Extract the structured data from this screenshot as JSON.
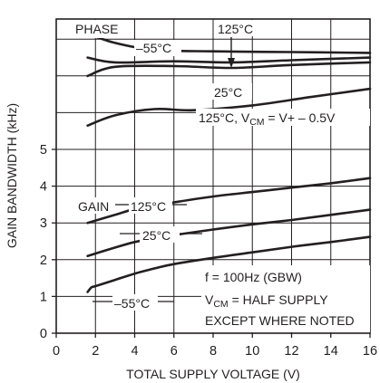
{
  "chart_data": {
    "type": "line",
    "xlabel": "TOTAL SUPPLY VOLTAGE (V)",
    "ylabel": "GAIN BANDWIDTH (kHz)",
    "xlim": [
      0,
      16
    ],
    "ylim": [
      0,
      5
    ],
    "x_ticks": [
      "0",
      "2",
      "4",
      "6",
      "8",
      "10",
      "12",
      "14",
      "16"
    ],
    "y_ticks": [
      "0",
      "1",
      "2",
      "3",
      "4",
      "5"
    ],
    "grid": true,
    "gain_series": [
      {
        "name": "125°C",
        "x": [
          1.6,
          3,
          4,
          5,
          6,
          8,
          10,
          12,
          14,
          16
        ],
        "y": [
          3.0,
          3.22,
          3.38,
          3.48,
          3.56,
          3.72,
          3.84,
          3.96,
          4.08,
          4.22
        ]
      },
      {
        "name": "25°C",
        "x": [
          1.6,
          3,
          4,
          5,
          6,
          8,
          10,
          12,
          14,
          16
        ],
        "y": [
          2.1,
          2.33,
          2.48,
          2.58,
          2.67,
          2.82,
          2.96,
          3.08,
          3.22,
          3.36
        ]
      },
      {
        "name": "–55°C",
        "x": [
          1.6,
          1.8,
          2,
          3,
          4,
          5,
          6,
          8,
          10,
          12,
          14,
          16
        ],
        "y": [
          1.12,
          1.25,
          1.28,
          1.45,
          1.62,
          1.76,
          1.88,
          2.05,
          2.2,
          2.35,
          2.48,
          2.62
        ]
      }
    ],
    "phase_series": [
      {
        "name": "–55°C",
        "curve_pos": [
          [
            1.6,
            0.4
          ],
          [
            3,
            0.65
          ],
          [
            5,
            0.84
          ],
          [
            8,
            0.88
          ],
          [
            12,
            0.9
          ],
          [
            16,
            0.92
          ]
        ]
      },
      {
        "name": "125°C",
        "curve_pos": [
          [
            1.6,
            1.05
          ],
          [
            3,
            1.18
          ],
          [
            6,
            1.15
          ],
          [
            9,
            1.18
          ],
          [
            12,
            1.12
          ],
          [
            16,
            1.05
          ]
        ]
      },
      {
        "name": "25°C",
        "curve_pos": [
          [
            1.6,
            1.55
          ],
          [
            3,
            1.3
          ],
          [
            6,
            1.28
          ],
          [
            9,
            1.33
          ],
          [
            12,
            1.25
          ],
          [
            16,
            1.18
          ]
        ]
      },
      {
        "name": "125°C, VCM = V+ – 0.5V",
        "curve_pos": [
          [
            1.6,
            2.9
          ],
          [
            3,
            2.62
          ],
          [
            5,
            2.45
          ],
          [
            7,
            2.48
          ],
          [
            10,
            2.35
          ],
          [
            13,
            2.12
          ],
          [
            16,
            1.9
          ]
        ]
      }
    ],
    "phase_title": "PHASE",
    "gain_title": "GAIN",
    "phase_labels": {
      "m55": "–55°C",
      "t125": "125°C",
      "t25": "25°C",
      "vcm_note_prefix": "125°C, V",
      "vcm_sub": "CM",
      "vcm_note_suffix": " = V+ – 0.5V"
    },
    "gain_labels": {
      "t125": "125°C",
      "t25": "25°C",
      "m55": "–55°C"
    },
    "notes": {
      "line1": "f = 100Hz (GBW)",
      "line2_prefix": "V",
      "line2_sub": "CM",
      "line2_suffix": " = HALF SUPPLY",
      "line3": "EXCEPT WHERE NOTED"
    }
  }
}
